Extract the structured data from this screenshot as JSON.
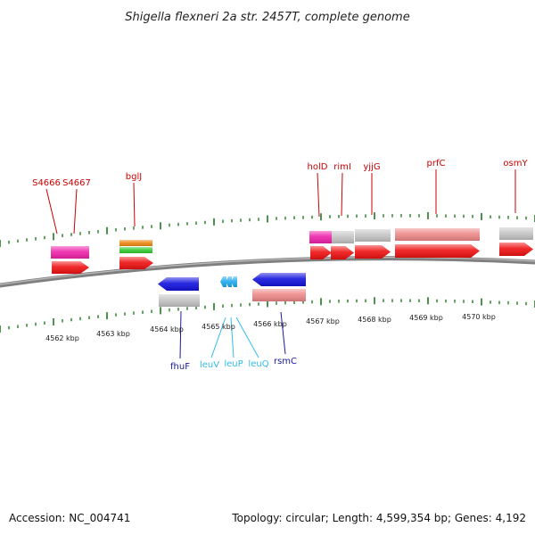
{
  "title": "Shigella flexneri 2a str. 2457T, complete genome",
  "accession_text": "Accession: NC_004741",
  "topology_text": "Topology: circular; Length: 4,599,354 bp; Genes: 4,192",
  "colors": {
    "backbone": "#808080",
    "tick": "#1f7a1f",
    "label_top": "#cc0000",
    "label_dark_blue": "#1a1a99",
    "label_light_blue": "#33bbee",
    "red": "#ee1111",
    "magenta": "#ee22aa",
    "gray": "#c4c4c4",
    "pink": "#ee8888",
    "orange": "#ee8811",
    "green": "#33cc33",
    "blue": "#1111dd",
    "cyan": "#22aaee"
  },
  "kbp_labels": [
    "4562 kbp",
    "4563 kbp",
    "4564 kbp",
    "4565 kbp",
    "4566 kbp",
    "4567 kbp",
    "4568 kbp",
    "4569 kbp",
    "4570 kbp"
  ],
  "top_labels": [
    "S4666",
    "S4667",
    "bglJ",
    "holD",
    "rimI",
    "yjjG",
    "prfC",
    "osmY"
  ],
  "bottom_labels": [
    {
      "text": "fhuF",
      "color": "dark_blue"
    },
    {
      "text": "leuV",
      "color": "light_blue"
    },
    {
      "text": "leuP",
      "color": "light_blue"
    },
    {
      "text": "leuQ",
      "color": "light_blue"
    },
    {
      "text": "rsmC",
      "color": "dark_blue"
    }
  ]
}
